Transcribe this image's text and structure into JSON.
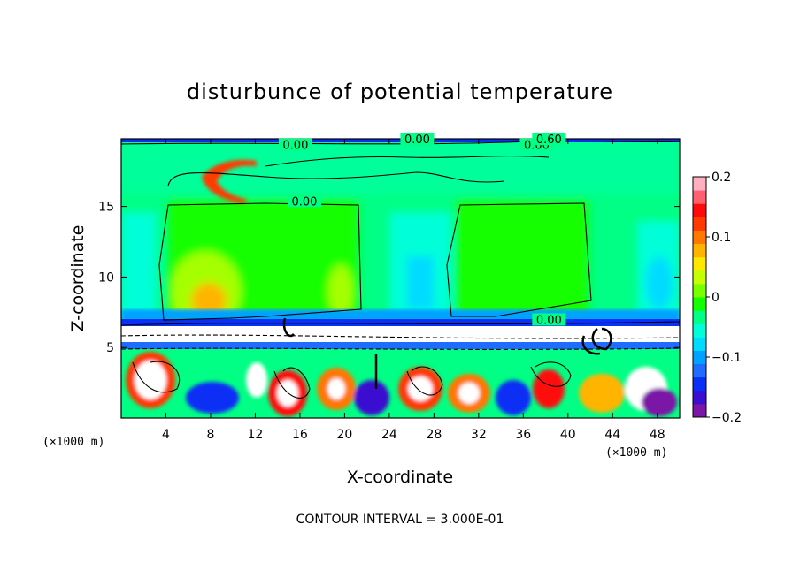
{
  "chart_data": {
    "type": "heatmap",
    "title": "disturbunce of potential temperature",
    "xlabel": "X-coordinate",
    "ylabel": "Z-coordinate",
    "x_unit": "(×1000 m)",
    "z_unit": "(×1000 m)",
    "xlim": [
      0,
      50
    ],
    "ylim": [
      0,
      19.8
    ],
    "x_ticks": [
      4,
      8,
      12,
      16,
      20,
      24,
      28,
      32,
      36,
      40,
      44,
      48
    ],
    "y_ticks": [
      5,
      10,
      15
    ],
    "colorbar": {
      "range": [
        -0.2,
        0.2
      ],
      "ticks": [
        {
          "value": 0.2,
          "label": "0.2"
        },
        {
          "value": 0.1,
          "label": "0.1"
        },
        {
          "value": 0.0,
          "label": "0"
        },
        {
          "value": -0.1,
          "label": "−0.1"
        },
        {
          "value": -0.2,
          "label": "−0.2"
        }
      ],
      "colors": [
        "#7b16a6",
        "#3a0fd0",
        "#0a2ff5",
        "#1f6cff",
        "#00a2ff",
        "#00dcff",
        "#00ffd8",
        "#00ff84",
        "#14ff00",
        "#78ff00",
        "#c6ff00",
        "#ffe800",
        "#ffb400",
        "#ff7800",
        "#ff3a00",
        "#ff0a0a",
        "#ff6070",
        "#ffb0c0"
      ]
    },
    "contour_labels": [
      {
        "text": "0.00",
        "x": 15.6,
        "z": 19.2
      },
      {
        "text": "0.00",
        "x": 26.5,
        "z": 19.6
      },
      {
        "text": "0.00",
        "x": 37.2,
        "z": 19.2
      },
      {
        "text": "0.60",
        "x": 38.3,
        "z": 19.6
      },
      {
        "text": "0.00",
        "x": 16.4,
        "z": 15.2
      },
      {
        "text": "0.00",
        "x": 38.3,
        "z": 6.8
      }
    ],
    "footer": "CONTOUR INTERVAL = 3.000E-01"
  }
}
